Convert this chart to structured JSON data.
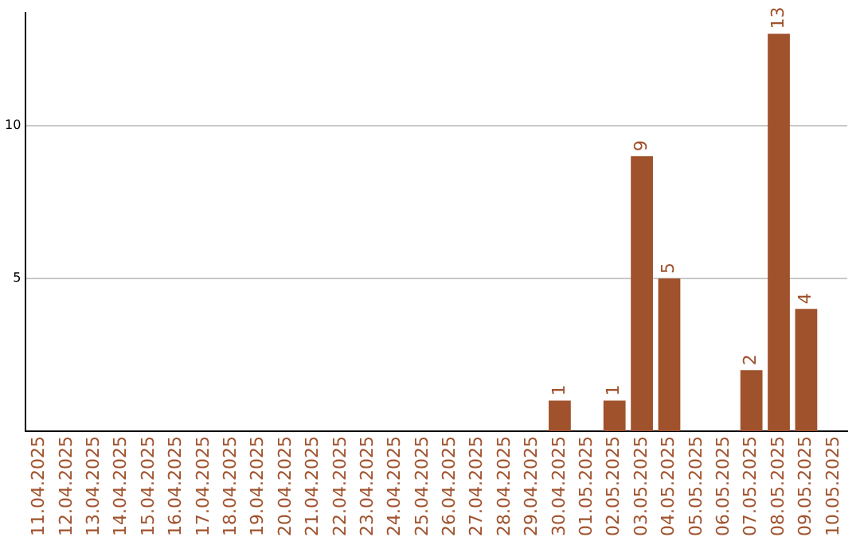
{
  "chart_data": {
    "type": "bar",
    "categories": [
      "11.04.2025",
      "12.04.2025",
      "13.04.2025",
      "14.04.2025",
      "15.04.2025",
      "16.04.2025",
      "17.04.2025",
      "18.04.2025",
      "19.04.2025",
      "20.04.2025",
      "21.04.2025",
      "22.04.2025",
      "23.04.2025",
      "24.04.2025",
      "25.04.2025",
      "26.04.2025",
      "27.04.2025",
      "28.04.2025",
      "29.04.2025",
      "30.04.2025",
      "01.05.2025",
      "02.05.2025",
      "03.05.2025",
      "04.05.2025",
      "05.05.2025",
      "06.05.2025",
      "07.05.2025",
      "08.05.2025",
      "09.05.2025",
      "10.05.2025"
    ],
    "values": [
      0,
      0,
      0,
      0,
      0,
      0,
      0,
      0,
      0,
      0,
      0,
      0,
      0,
      0,
      0,
      0,
      0,
      0,
      0,
      1,
      0,
      1,
      9,
      5,
      0,
      0,
      2,
      13,
      4,
      0
    ],
    "value_labels": [
      null,
      null,
      null,
      null,
      null,
      null,
      null,
      null,
      null,
      null,
      null,
      null,
      null,
      null,
      null,
      null,
      null,
      null,
      null,
      "1",
      null,
      "1",
      "9",
      "5",
      null,
      null,
      "2",
      "13",
      "4",
      null
    ],
    "color": "#a0522d",
    "ylim": [
      0,
      13.7
    ],
    "yticks": [
      5,
      10
    ],
    "grid": "y",
    "legend": false
  }
}
